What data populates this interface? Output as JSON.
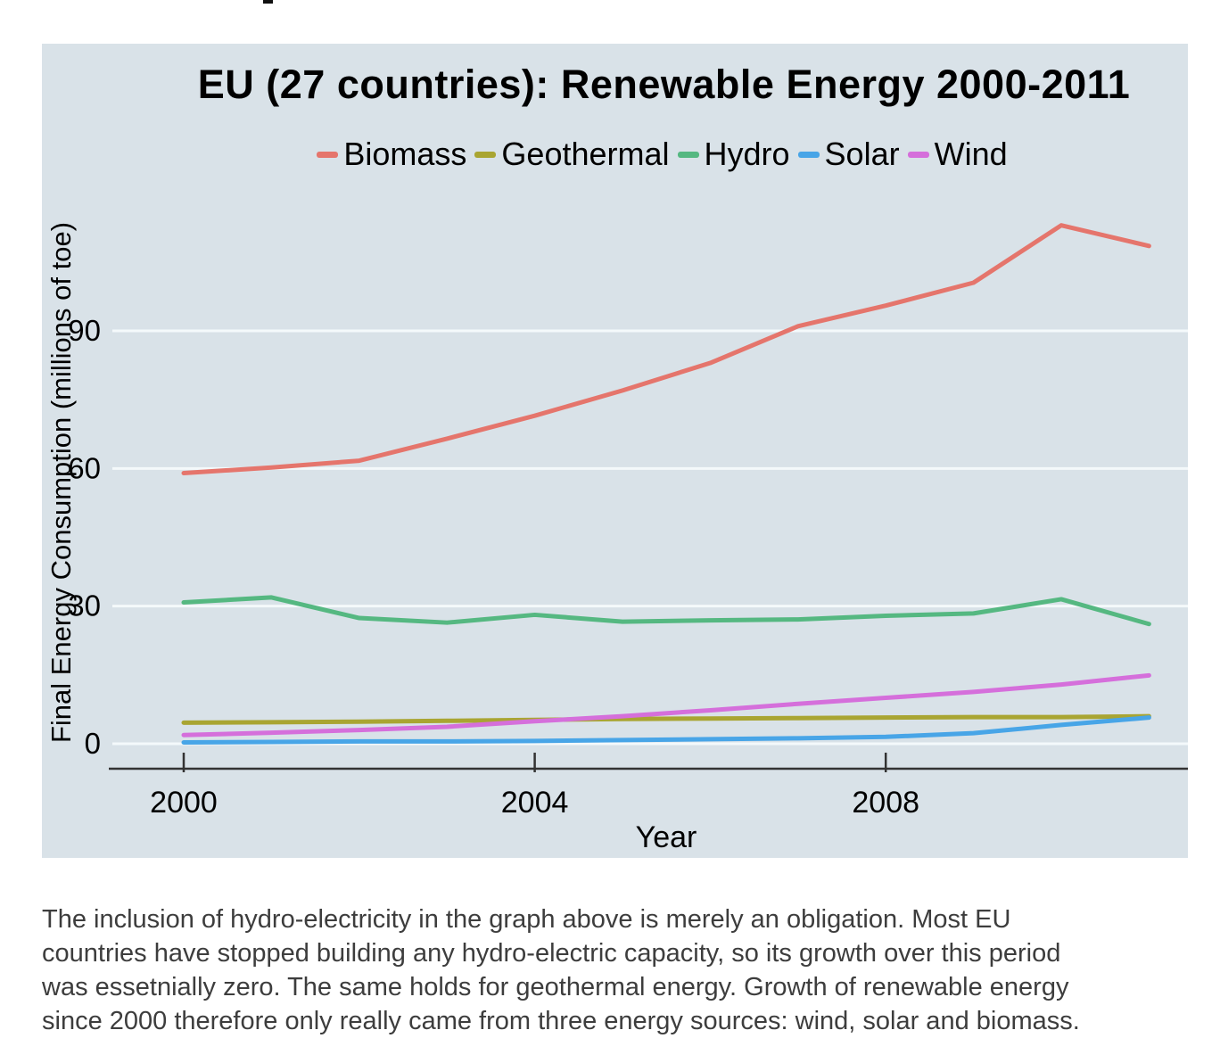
{
  "chart_data": {
    "type": "line",
    "title": "EU (27 countries): Renewable Energy 2000-2011",
    "xlabel": "Year",
    "ylabel": "Final Energy Consumption (millions of toe)",
    "x": [
      2000,
      2001,
      2002,
      2003,
      2004,
      2005,
      2006,
      2007,
      2008,
      2009,
      2010,
      2011
    ],
    "xticks": [
      2000,
      2004,
      2008
    ],
    "yticks": [
      0,
      30,
      60,
      90
    ],
    "xlim": [
      1999.5,
      2011.5
    ],
    "ylim": [
      0,
      120
    ],
    "grid": true,
    "legend_position": "top",
    "panel_bg": "#d9e2e8",
    "grid_color": "#f4f9fb",
    "axis_color": "#333333",
    "series": [
      {
        "name": "Biomass",
        "color": "#e5756c",
        "values": [
          59,
          60.2,
          61.7,
          66.5,
          71.5,
          77,
          83,
          91,
          95.5,
          100.5,
          113,
          108.5
        ]
      },
      {
        "name": "Geothermal",
        "color": "#a9a532",
        "values": [
          4.6,
          4.7,
          4.8,
          5.0,
          5.2,
          5.4,
          5.5,
          5.6,
          5.7,
          5.8,
          5.8,
          6.0
        ]
      },
      {
        "name": "Hydro",
        "color": "#55b881",
        "values": [
          30.8,
          31.9,
          27.4,
          26.4,
          28.1,
          26.6,
          26.9,
          27.1,
          27.9,
          28.4,
          31.5,
          26.1
        ]
      },
      {
        "name": "Solar",
        "color": "#48a5e7",
        "values": [
          0.3,
          0.4,
          0.5,
          0.5,
          0.6,
          0.8,
          1.0,
          1.2,
          1.5,
          2.3,
          4.1,
          5.7
        ]
      },
      {
        "name": "Wind",
        "color": "#d56fdb",
        "values": [
          1.9,
          2.4,
          3.0,
          3.7,
          4.9,
          6.0,
          7.3,
          8.7,
          10.0,
          11.3,
          12.9,
          14.9
        ]
      }
    ]
  },
  "caption": {
    "lines": [
      "The inclusion of hydro-electricity in the graph above is merely an obligation. Most EU",
      "countries have stopped building any hydro-electric capacity, so its growth over this period",
      "was essetnially zero. The same holds for geothermal energy. Growth of renewable energy",
      "since 2000 therefore only really came from three energy sources: wind, solar and biomass."
    ]
  }
}
